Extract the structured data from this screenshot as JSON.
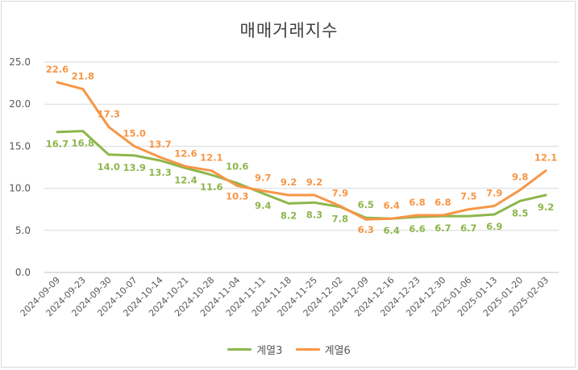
{
  "chart_data": {
    "type": "line",
    "title": "매매거래지수",
    "xlabel": "",
    "ylabel": "",
    "ylim": [
      0,
      25
    ],
    "yticks": [
      "0.0",
      "5.0",
      "10.0",
      "15.0",
      "20.0",
      "25.0"
    ],
    "grid": "horizontal",
    "legend_position": "bottom",
    "categories": [
      "2024-09-09",
      "2024-09-23",
      "2024-09-30",
      "2024-10-07",
      "2024-10-14",
      "2024-10-21",
      "2024-10-28",
      "2024-11-04",
      "2024-11-11",
      "2024-11-18",
      "2024-11-25",
      "2024-12-02",
      "2024-12-09",
      "2024-12-16",
      "2024-12-23",
      "2024-12-30",
      "2025-01-06",
      "2025-01-13",
      "2025-01-20",
      "2025-02-03"
    ],
    "series": [
      {
        "name": "계열3",
        "color": "#8db64c",
        "values": [
          16.7,
          16.8,
          14.0,
          13.9,
          13.3,
          12.4,
          11.6,
          10.6,
          9.4,
          8.2,
          8.3,
          7.8,
          6.5,
          6.4,
          6.6,
          6.7,
          6.7,
          6.9,
          8.5,
          9.2
        ]
      },
      {
        "name": "계열6",
        "color": "#f79646",
        "values": [
          22.6,
          21.8,
          17.3,
          15.0,
          13.7,
          12.6,
          12.1,
          10.3,
          9.7,
          9.2,
          9.2,
          7.9,
          6.3,
          6.4,
          6.8,
          6.8,
          7.5,
          7.9,
          9.8,
          12.1
        ]
      }
    ]
  }
}
